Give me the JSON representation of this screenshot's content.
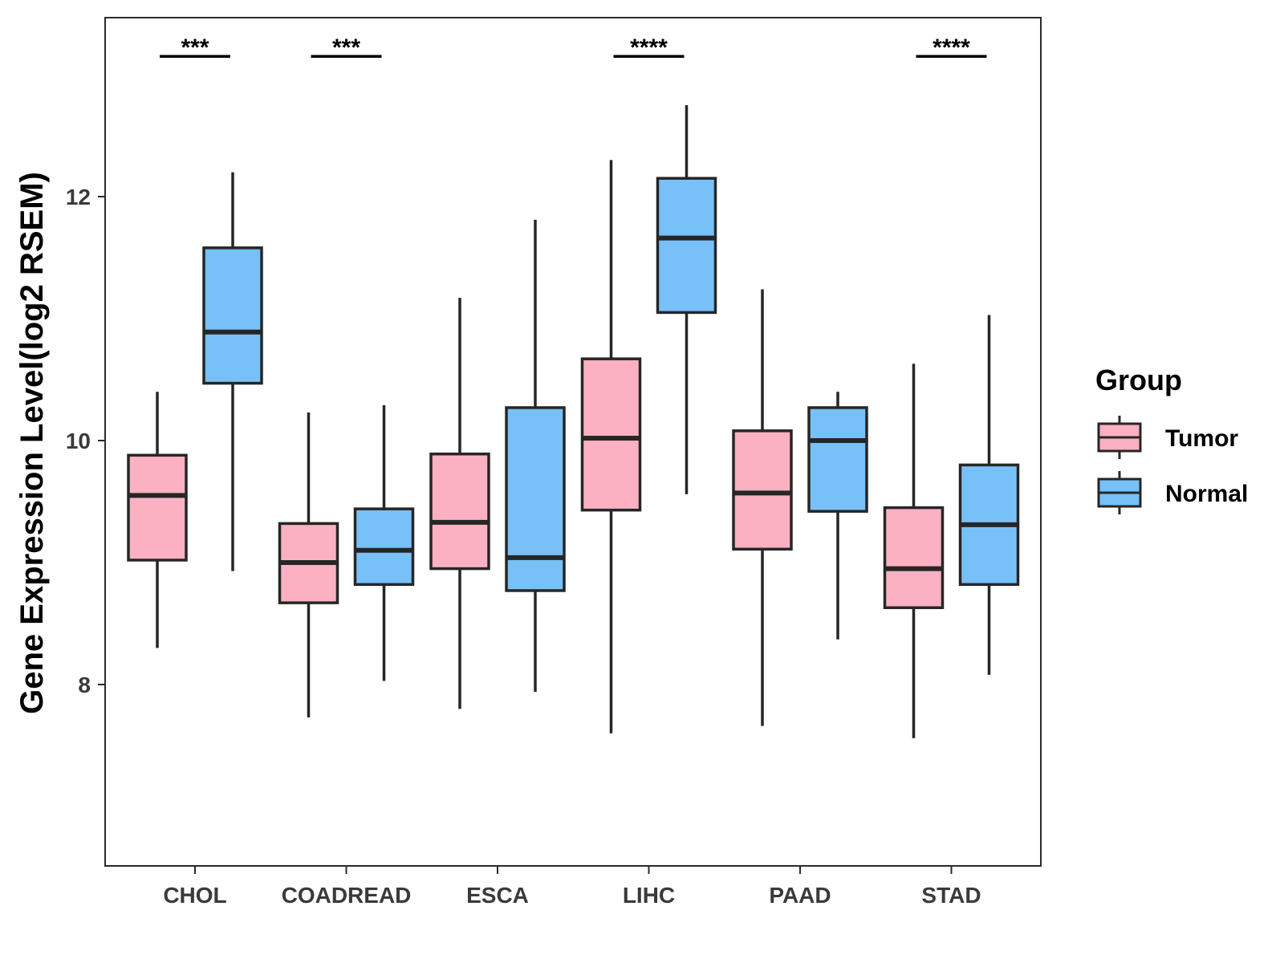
{
  "chart_data": {
    "type": "boxplot",
    "title": "",
    "xlabel": "",
    "ylabel": "Gene Expression Level(log2 RSEM)",
    "ylim": [
      6.55,
      13.5
    ],
    "yticks": [
      8,
      10,
      12
    ],
    "categories": [
      "CHOL",
      "COADREAD",
      "ESCA",
      "LIHC",
      "PAAD",
      "STAD"
    ],
    "legend": {
      "title": "Group",
      "position": "right"
    },
    "grid": false,
    "series": [
      {
        "name": "Tumor",
        "color": "#FBB1C2",
        "boxes": [
          {
            "category": "CHOL",
            "min": 8.3,
            "q1": 9.02,
            "median": 9.55,
            "q3": 9.88,
            "max": 10.4
          },
          {
            "category": "COADREAD",
            "min": 7.73,
            "q1": 8.67,
            "median": 9.0,
            "q3": 9.32,
            "max": 10.23
          },
          {
            "category": "ESCA",
            "min": 7.8,
            "q1": 8.95,
            "median": 9.33,
            "q3": 9.89,
            "max": 11.17
          },
          {
            "category": "LIHC",
            "min": 7.6,
            "q1": 9.43,
            "median": 10.02,
            "q3": 10.67,
            "max": 12.3
          },
          {
            "category": "PAAD",
            "min": 7.66,
            "q1": 9.11,
            "median": 9.57,
            "q3": 10.08,
            "max": 11.24
          },
          {
            "category": "STAD",
            "min": 7.56,
            "q1": 8.63,
            "median": 8.95,
            "q3": 9.45,
            "max": 10.63
          }
        ]
      },
      {
        "name": "Normal",
        "color": "#78C1F8",
        "boxes": [
          {
            "category": "CHOL",
            "min": 8.93,
            "q1": 10.47,
            "median": 10.89,
            "q3": 11.58,
            "max": 12.2
          },
          {
            "category": "COADREAD",
            "min": 8.03,
            "q1": 8.82,
            "median": 9.1,
            "q3": 9.44,
            "max": 10.29
          },
          {
            "category": "ESCA",
            "min": 7.94,
            "q1": 8.77,
            "median": 9.04,
            "q3": 10.27,
            "max": 11.81
          },
          {
            "category": "LIHC",
            "min": 9.56,
            "q1": 11.05,
            "median": 11.66,
            "q3": 12.15,
            "max": 12.75
          },
          {
            "category": "PAAD",
            "min": 8.37,
            "q1": 9.42,
            "median": 10.0,
            "q3": 10.27,
            "max": 10.4
          },
          {
            "category": "STAD",
            "min": 8.08,
            "q1": 8.82,
            "median": 9.31,
            "q3": 9.8,
            "max": 11.03
          }
        ]
      }
    ],
    "significance": [
      {
        "category": "CHOL",
        "label": "***",
        "y": 13.15
      },
      {
        "category": "COADREAD",
        "label": "***",
        "y": 13.15
      },
      {
        "category": "LIHC",
        "label": "****",
        "y": 13.15
      },
      {
        "category": "STAD",
        "label": "****",
        "y": 13.15
      }
    ]
  }
}
